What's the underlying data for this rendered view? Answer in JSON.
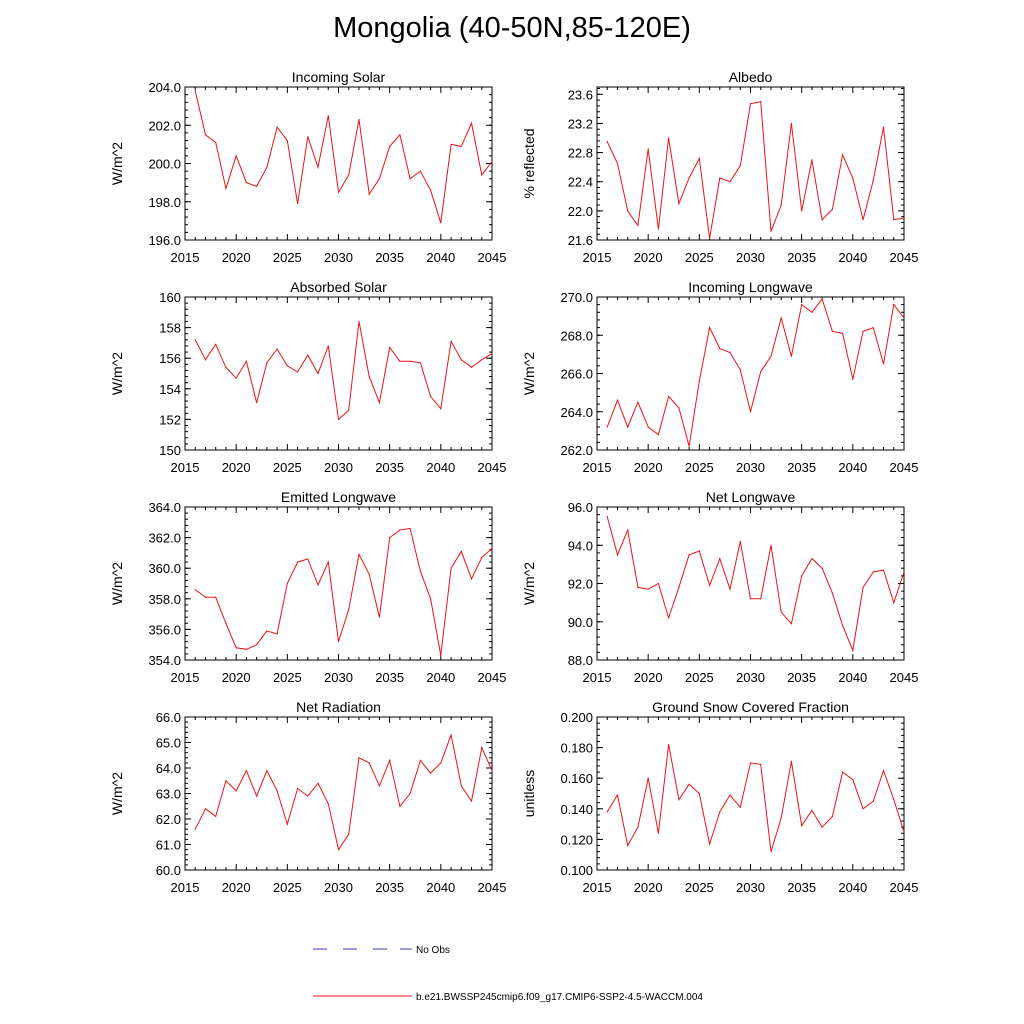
{
  "title": "Mongolia (40-50N,85-120E)",
  "colors": {
    "model_line": "#e8141a",
    "obs_line": "#3a3ab0",
    "axis": "#000000"
  },
  "legend": {
    "obs_label": "No Obs",
    "model_label": "b.e21.BWSSP245cmip6.f09_g17.CMIP6-SSP2-4.5-WACCM.004"
  },
  "chart_data": [
    {
      "type": "line",
      "title": "Incoming Solar",
      "xlabel": "",
      "ylabel": "W/m^2",
      "xlim": [
        2015,
        2045
      ],
      "ylim": [
        196.0,
        204.0
      ],
      "xticks": [
        "2015",
        "2020",
        "2025",
        "2030",
        "2035",
        "2040",
        "2045"
      ],
      "yticks": [
        "196.0",
        "198.0",
        "200.0",
        "202.0",
        "204.0"
      ],
      "x": [
        2016,
        2017,
        2018,
        2019,
        2020,
        2021,
        2022,
        2023,
        2024,
        2025,
        2026,
        2027,
        2028,
        2029,
        2030,
        2031,
        2032,
        2033,
        2034,
        2035,
        2036,
        2037,
        2038,
        2039,
        2040,
        2041,
        2042,
        2043,
        2044,
        2045
      ],
      "values": [
        203.8,
        201.5,
        201.1,
        198.7,
        200.4,
        199.0,
        198.8,
        199.8,
        201.9,
        201.2,
        197.9,
        201.4,
        199.8,
        202.5,
        198.5,
        199.4,
        202.3,
        198.4,
        199.2,
        200.9,
        201.5,
        199.2,
        199.6,
        198.6,
        196.9,
        201.0,
        200.9,
        202.1,
        199.4,
        200.1
      ]
    },
    {
      "type": "line",
      "title": "Albedo",
      "xlabel": "",
      "ylabel": "% reflected",
      "xlim": [
        2015,
        2045
      ],
      "ylim": [
        21.6,
        23.7
      ],
      "xticks": [
        "2015",
        "2020",
        "2025",
        "2030",
        "2035",
        "2040",
        "2045"
      ],
      "yticks": [
        "21.6",
        "22.0",
        "22.4",
        "22.8",
        "23.2",
        "23.6"
      ],
      "x": [
        2016,
        2017,
        2018,
        2019,
        2020,
        2021,
        2022,
        2023,
        2024,
        2025,
        2026,
        2027,
        2028,
        2029,
        2030,
        2031,
        2032,
        2033,
        2034,
        2035,
        2036,
        2037,
        2038,
        2039,
        2040,
        2041,
        2042,
        2043,
        2044,
        2045
      ],
      "values": [
        22.95,
        22.65,
        22.0,
        21.8,
        22.85,
        21.75,
        23.0,
        22.1,
        22.45,
        22.72,
        21.62,
        22.45,
        22.4,
        22.62,
        23.47,
        23.5,
        21.72,
        22.08,
        23.2,
        22.0,
        22.7,
        21.88,
        22.02,
        22.77,
        22.45,
        21.88,
        22.42,
        23.15,
        21.88,
        21.9
      ]
    },
    {
      "type": "line",
      "title": "Absorbed Solar",
      "xlabel": "",
      "ylabel": "W/m^2",
      "xlim": [
        2015,
        2045
      ],
      "ylim": [
        150,
        160
      ],
      "xticks": [
        "2015",
        "2020",
        "2025",
        "2030",
        "2035",
        "2040",
        "2045"
      ],
      "yticks": [
        "150",
        "152",
        "154",
        "156",
        "158",
        "160"
      ],
      "x": [
        2016,
        2017,
        2018,
        2019,
        2020,
        2021,
        2022,
        2023,
        2024,
        2025,
        2026,
        2027,
        2028,
        2029,
        2030,
        2031,
        2032,
        2033,
        2034,
        2035,
        2036,
        2037,
        2038,
        2039,
        2040,
        2041,
        2042,
        2043,
        2044,
        2045
      ],
      "values": [
        157.2,
        155.9,
        156.9,
        155.4,
        154.7,
        155.8,
        153.1,
        155.7,
        156.6,
        155.5,
        155.1,
        156.2,
        155.0,
        156.8,
        152.0,
        152.6,
        158.4,
        154.8,
        153.1,
        156.7,
        155.8,
        155.8,
        155.7,
        153.5,
        152.7,
        157.1,
        155.9,
        155.4,
        155.9,
        156.3
      ]
    },
    {
      "type": "line",
      "title": "Incoming Longwave",
      "xlabel": "",
      "ylabel": "W/m^2",
      "xlim": [
        2015,
        2045
      ],
      "ylim": [
        262.0,
        270.0
      ],
      "xticks": [
        "2015",
        "2020",
        "2025",
        "2030",
        "2035",
        "2040",
        "2045"
      ],
      "yticks": [
        "262.0",
        "264.0",
        "266.0",
        "268.0",
        "270.0"
      ],
      "x": [
        2016,
        2017,
        2018,
        2019,
        2020,
        2021,
        2022,
        2023,
        2024,
        2025,
        2026,
        2027,
        2028,
        2029,
        2030,
        2031,
        2032,
        2033,
        2034,
        2035,
        2036,
        2037,
        2038,
        2039,
        2040,
        2041,
        2042,
        2043,
        2044,
        2045
      ],
      "values": [
        263.2,
        264.6,
        263.2,
        264.5,
        263.2,
        262.8,
        264.8,
        264.2,
        262.2,
        265.6,
        268.4,
        267.3,
        267.1,
        266.2,
        264.0,
        266.1,
        266.9,
        268.9,
        266.9,
        269.6,
        269.2,
        269.9,
        268.2,
        268.1,
        265.7,
        268.2,
        268.4,
        266.5,
        269.6,
        268.9
      ]
    },
    {
      "type": "line",
      "title": "Emitted Longwave",
      "xlabel": "",
      "ylabel": "W/m^2",
      "xlim": [
        2015,
        2045
      ],
      "ylim": [
        354.0,
        364.0
      ],
      "xticks": [
        "2015",
        "2020",
        "2025",
        "2030",
        "2035",
        "2040",
        "2045"
      ],
      "yticks": [
        "354.0",
        "356.0",
        "358.0",
        "360.0",
        "362.0",
        "364.0"
      ],
      "x": [
        2016,
        2017,
        2018,
        2019,
        2020,
        2021,
        2022,
        2023,
        2024,
        2025,
        2026,
        2027,
        2028,
        2029,
        2030,
        2031,
        2032,
        2033,
        2034,
        2035,
        2036,
        2037,
        2038,
        2039,
        2040,
        2041,
        2042,
        2043,
        2044,
        2045
      ],
      "values": [
        358.6,
        358.1,
        358.1,
        356.4,
        354.8,
        354.7,
        355.0,
        355.9,
        355.7,
        359.0,
        360.4,
        360.6,
        358.9,
        360.4,
        355.2,
        357.3,
        360.9,
        359.6,
        356.8,
        362.0,
        362.5,
        362.6,
        359.8,
        358.0,
        354.3,
        360.0,
        361.1,
        359.3,
        360.7,
        361.3
      ]
    },
    {
      "type": "line",
      "title": "Net Longwave",
      "xlabel": "",
      "ylabel": "W/m^2",
      "xlim": [
        2015,
        2045
      ],
      "ylim": [
        88.0,
        96.0
      ],
      "xticks": [
        "2015",
        "2020",
        "2025",
        "2030",
        "2035",
        "2040",
        "2045"
      ],
      "yticks": [
        "88.0",
        "90.0",
        "92.0",
        "94.0",
        "96.0"
      ],
      "x": [
        2016,
        2017,
        2018,
        2019,
        2020,
        2021,
        2022,
        2023,
        2024,
        2025,
        2026,
        2027,
        2028,
        2029,
        2030,
        2031,
        2032,
        2033,
        2034,
        2035,
        2036,
        2037,
        2038,
        2039,
        2040,
        2041,
        2042,
        2043,
        2044,
        2045
      ],
      "values": [
        95.5,
        93.5,
        94.8,
        91.8,
        91.7,
        92.0,
        90.2,
        91.8,
        93.5,
        93.7,
        91.9,
        93.3,
        91.7,
        94.2,
        91.2,
        91.2,
        94.0,
        90.5,
        89.9,
        92.4,
        93.3,
        92.8,
        91.5,
        89.8,
        88.5,
        91.8,
        92.6,
        92.7,
        91.0,
        92.6
      ]
    },
    {
      "type": "line",
      "title": "Net Radiation",
      "xlabel": "",
      "ylabel": "W/m^2",
      "xlim": [
        2015,
        2045
      ],
      "ylim": [
        60.0,
        66.0
      ],
      "xticks": [
        "2015",
        "2020",
        "2025",
        "2030",
        "2035",
        "2040",
        "2045"
      ],
      "yticks": [
        "60.0",
        "61.0",
        "62.0",
        "63.0",
        "64.0",
        "65.0",
        "66.0"
      ],
      "x": [
        2016,
        2017,
        2018,
        2019,
        2020,
        2021,
        2022,
        2023,
        2024,
        2025,
        2026,
        2027,
        2028,
        2029,
        2030,
        2031,
        2032,
        2033,
        2034,
        2035,
        2036,
        2037,
        2038,
        2039,
        2040,
        2041,
        2042,
        2043,
        2044,
        2045
      ],
      "values": [
        61.6,
        62.4,
        62.1,
        63.5,
        63.1,
        63.9,
        62.9,
        63.9,
        63.1,
        61.8,
        63.2,
        62.9,
        63.4,
        62.6,
        60.8,
        61.4,
        64.4,
        64.2,
        63.3,
        64.3,
        62.5,
        63.0,
        64.3,
        63.8,
        64.2,
        65.3,
        63.3,
        62.7,
        64.8,
        63.9
      ]
    },
    {
      "type": "line",
      "title": "Ground Snow Covered Fraction",
      "xlabel": "",
      "ylabel": "unitless",
      "xlim": [
        2015,
        2045
      ],
      "ylim": [
        0.1,
        0.2
      ],
      "xticks": [
        "2015",
        "2020",
        "2025",
        "2030",
        "2035",
        "2040",
        "2045"
      ],
      "yticks": [
        "0.100",
        "0.120",
        "0.140",
        "0.160",
        "0.180",
        "0.200"
      ],
      "x": [
        2016,
        2017,
        2018,
        2019,
        2020,
        2021,
        2022,
        2023,
        2024,
        2025,
        2026,
        2027,
        2028,
        2029,
        2030,
        2031,
        2032,
        2033,
        2034,
        2035,
        2036,
        2037,
        2038,
        2039,
        2040,
        2041,
        2042,
        2043,
        2044,
        2045
      ],
      "values": [
        0.138,
        0.149,
        0.116,
        0.128,
        0.16,
        0.124,
        0.182,
        0.146,
        0.156,
        0.15,
        0.117,
        0.138,
        0.149,
        0.141,
        0.17,
        0.169,
        0.112,
        0.134,
        0.171,
        0.129,
        0.139,
        0.128,
        0.135,
        0.164,
        0.159,
        0.14,
        0.145,
        0.165,
        0.146,
        0.125
      ]
    }
  ]
}
